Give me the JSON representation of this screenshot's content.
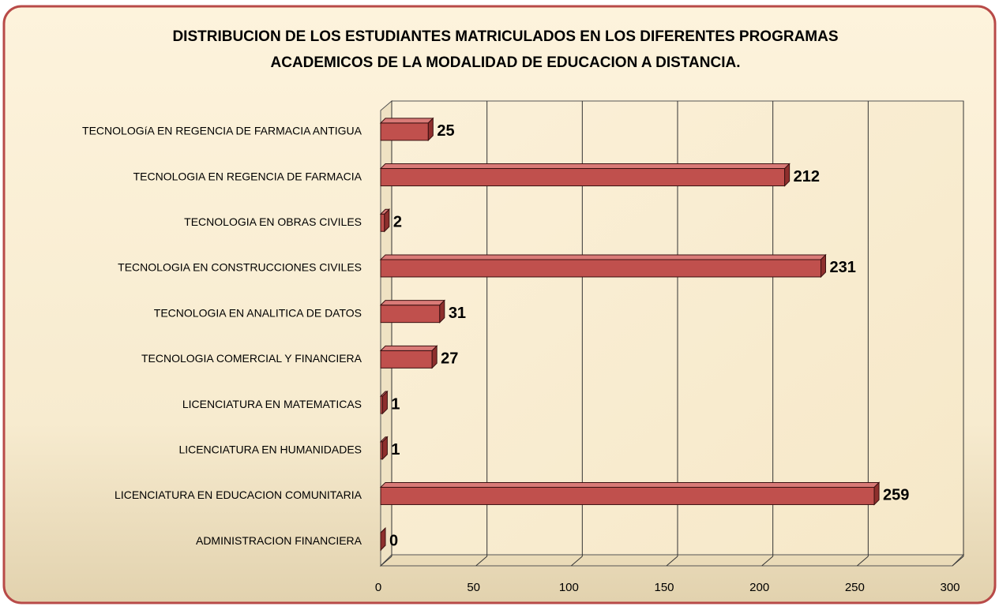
{
  "chart_data": {
    "type": "bar",
    "orientation": "horizontal",
    "title": [
      "DISTRIBUCION DE LOS ESTUDIANTES MATRICULADOS EN LOS DIFERENTES PROGRAMAS",
      "ACADEMICOS DE  LA MODALIDAD DE  EDUCACION A DISTANCIA."
    ],
    "categories": [
      "TECNOLOGíA EN REGENCIA DE FARMACIA ANTIGUA",
      "TECNOLOGIA EN REGENCIA DE FARMACIA",
      "TECNOLOGIA EN OBRAS CIVILES",
      "TECNOLOGIA EN CONSTRUCCIONES CIVILES",
      "TECNOLOGIA EN ANALITICA DE DATOS",
      "TECNOLOGIA  COMERCIAL Y FINANCIERA",
      "LICENCIATURA EN MATEMATICAS",
      "LICENCIATURA EN HUMANIDADES",
      "LICENCIATURA EN EDUCACION COMUNITARIA",
      "ADMINISTRACION FINANCIERA"
    ],
    "values": [
      25,
      212,
      2,
      231,
      31,
      27,
      1,
      1,
      259,
      0
    ],
    "color": "#c0504d",
    "xlim": [
      0,
      300
    ],
    "xticks": [
      0,
      50,
      100,
      150,
      200,
      250,
      300
    ],
    "grid": true
  }
}
